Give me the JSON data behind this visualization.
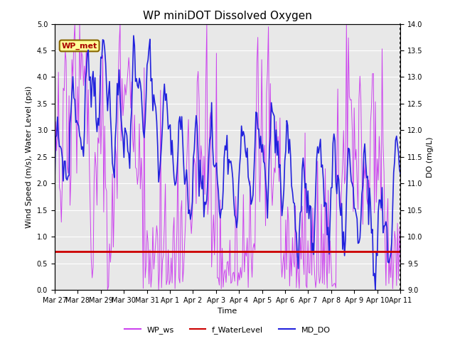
{
  "title": "WP miniDOT Dissolved Oxygen",
  "xlabel": "Time",
  "ylabel_left": "Wind Speed (m/s), Water Level (psi)",
  "ylabel_right": "DO (mg/L)",
  "ylim_left": [
    0.0,
    5.0
  ],
  "ylim_right": [
    9.0,
    14.0
  ],
  "yticks_left": [
    0.0,
    0.5,
    1.0,
    1.5,
    2.0,
    2.5,
    3.0,
    3.5,
    4.0,
    4.5,
    5.0
  ],
  "yticks_right": [
    9.0,
    9.5,
    10.0,
    10.5,
    11.0,
    11.5,
    12.0,
    12.5,
    13.0,
    13.5,
    14.0
  ],
  "xtick_labels": [
    "Mar 27",
    "Mar 28",
    "Mar 29",
    "Mar 30",
    "Mar 31",
    "Apr 1",
    "Apr 2",
    "Apr 3",
    "Apr 4",
    "Apr 5",
    "Apr 6",
    "Apr 7",
    "Apr 8",
    "Apr 9",
    "Apr 10",
    "Apr 11"
  ],
  "xtick_positions": [
    0,
    1,
    2,
    3,
    4,
    5,
    6,
    7,
    8,
    9,
    10,
    11,
    12,
    13,
    14,
    15
  ],
  "bg_color": "#e8e8e8",
  "wp_ws_color": "#cc44ee",
  "f_wl_color": "#cc0000",
  "md_do_color": "#2222dd",
  "annotation_text": "WP_met",
  "annotation_bg": "#ffff99",
  "annotation_border": "#886600",
  "legend_labels": [
    "WP_ws",
    "f_WaterLevel",
    "MD_DO"
  ],
  "f_waterlevel_value": 0.72,
  "title_fontsize": 11,
  "axis_label_fontsize": 8,
  "tick_fontsize": 7,
  "legend_fontsize": 8
}
